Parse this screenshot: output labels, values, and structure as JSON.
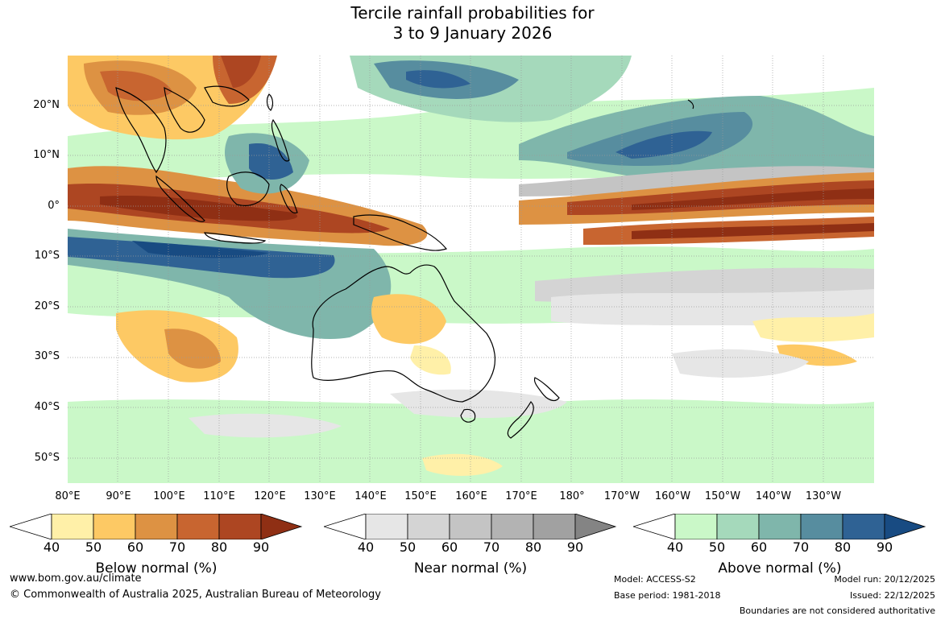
{
  "title_line1": "Tercile rainfall probabilities for",
  "title_line2": "3 to 9 January 2026",
  "lat_labels": [
    "20°N",
    "10°N",
    "0°",
    "10°S",
    "20°S",
    "30°S",
    "40°S",
    "50°S"
  ],
  "lon_labels": [
    "80°E",
    "90°E",
    "100°E",
    "110°E",
    "120°E",
    "130°E",
    "140°E",
    "150°E",
    "160°E",
    "170°E",
    "180°",
    "170°W",
    "160°W",
    "150°W",
    "140°W",
    "130°W"
  ],
  "colorbars": [
    {
      "label": "Below normal (%)",
      "ticks": [
        "40",
        "50",
        "60",
        "70",
        "80",
        "90"
      ],
      "colors": [
        "#fff0a8",
        "#fdc964",
        "#dd9243",
        "#c86530",
        "#ad4622",
        "#8f2f14"
      ]
    },
    {
      "label": "Near normal (%)",
      "ticks": [
        "40",
        "50",
        "60",
        "70",
        "80",
        "90"
      ],
      "colors": [
        "#e6e6e6",
        "#d4d4d4",
        "#c4c4c4",
        "#b3b3b3",
        "#a1a1a1",
        "#848484"
      ]
    },
    {
      "label": "Above normal (%)",
      "ticks": [
        "40",
        "50",
        "60",
        "70",
        "80",
        "90"
      ],
      "colors": [
        "#caf8c8",
        "#a5d9bb",
        "#7fb6ab",
        "#578d9f",
        "#2f6294",
        "#184b82"
      ]
    }
  ],
  "footer": {
    "url": "www.bom.gov.au/climate",
    "copyright": "© Commonwealth of Australia 2025, Australian Bureau of Meteorology",
    "model": "Model: ACCESS-S2",
    "base_period": "Base period: 1981-2018",
    "model_run": "Model run: 20/12/2025",
    "issued": "Issued: 22/12/2025",
    "disclaimer": "Boundaries are not considered authoritative"
  }
}
